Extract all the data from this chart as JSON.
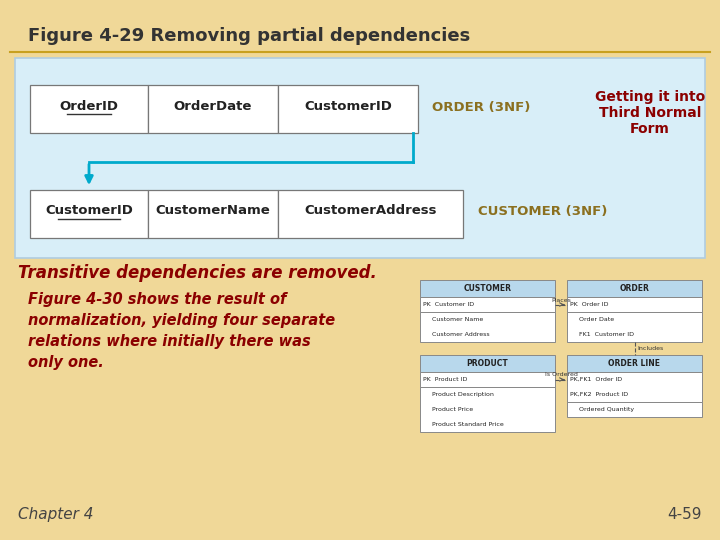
{
  "title": "Figure 4-29 Removing partial dependencies",
  "bg_color": "#f0d898",
  "title_color": "#333333",
  "title_fontsize": 13,
  "blue_panel_color": "#d8eef8",
  "blue_panel_border": "#b0cce0",
  "order_fields": [
    "OrderID",
    "OrderDate",
    "CustomerID"
  ],
  "order_underline": [
    true,
    false,
    false
  ],
  "order_dashed": [
    false,
    false,
    true
  ],
  "order_label": "ORDER (3NF)",
  "customer_fields": [
    "CustomerID",
    "CustomerName",
    "CustomerAddress"
  ],
  "customer_underline": [
    true,
    false,
    false
  ],
  "customer_label": "CUSTOMER (3NF)",
  "label_color": "#8B7020",
  "getting_text": [
    "Getting it into",
    "Third Normal",
    "Form"
  ],
  "getting_color": "#8B0000",
  "arrow_color": "#00AACC",
  "transitive_text": "Transitive dependencies are removed.",
  "transitive_color": "#8B0000",
  "fig430_lines": [
    "Figure 4-30 shows the result of",
    "normalization, yielding four separate",
    "relations where initially there was",
    "only one."
  ],
  "fig430_color": "#8B0000",
  "chapter_text": "Chapter 4",
  "page_text": "4-59",
  "footer_color": "#444444",
  "erd_header_color": "#b8d8ec",
  "erd_border": "#888888"
}
